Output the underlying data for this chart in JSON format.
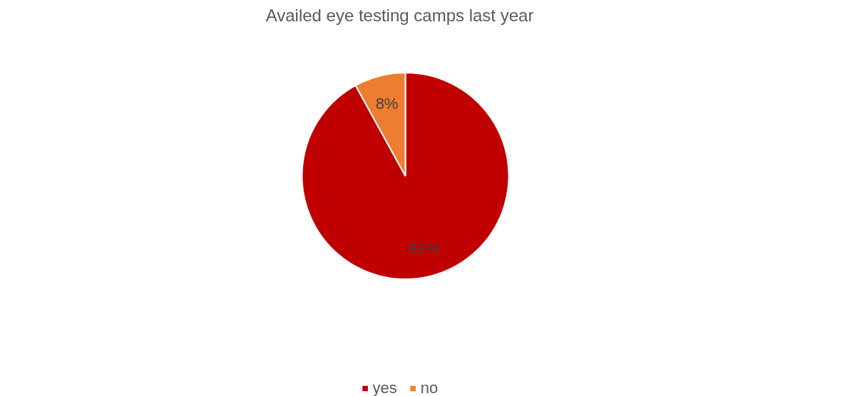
{
  "chart_data": {
    "type": "pie",
    "title": "Availed eye testing camps last year",
    "categories": [
      "yes",
      "no"
    ],
    "values": [
      92,
      8
    ],
    "colors": [
      "#c00000",
      "#ed7d31"
    ],
    "value_labels": [
      "92%",
      "8%"
    ],
    "legend": "bottom"
  }
}
